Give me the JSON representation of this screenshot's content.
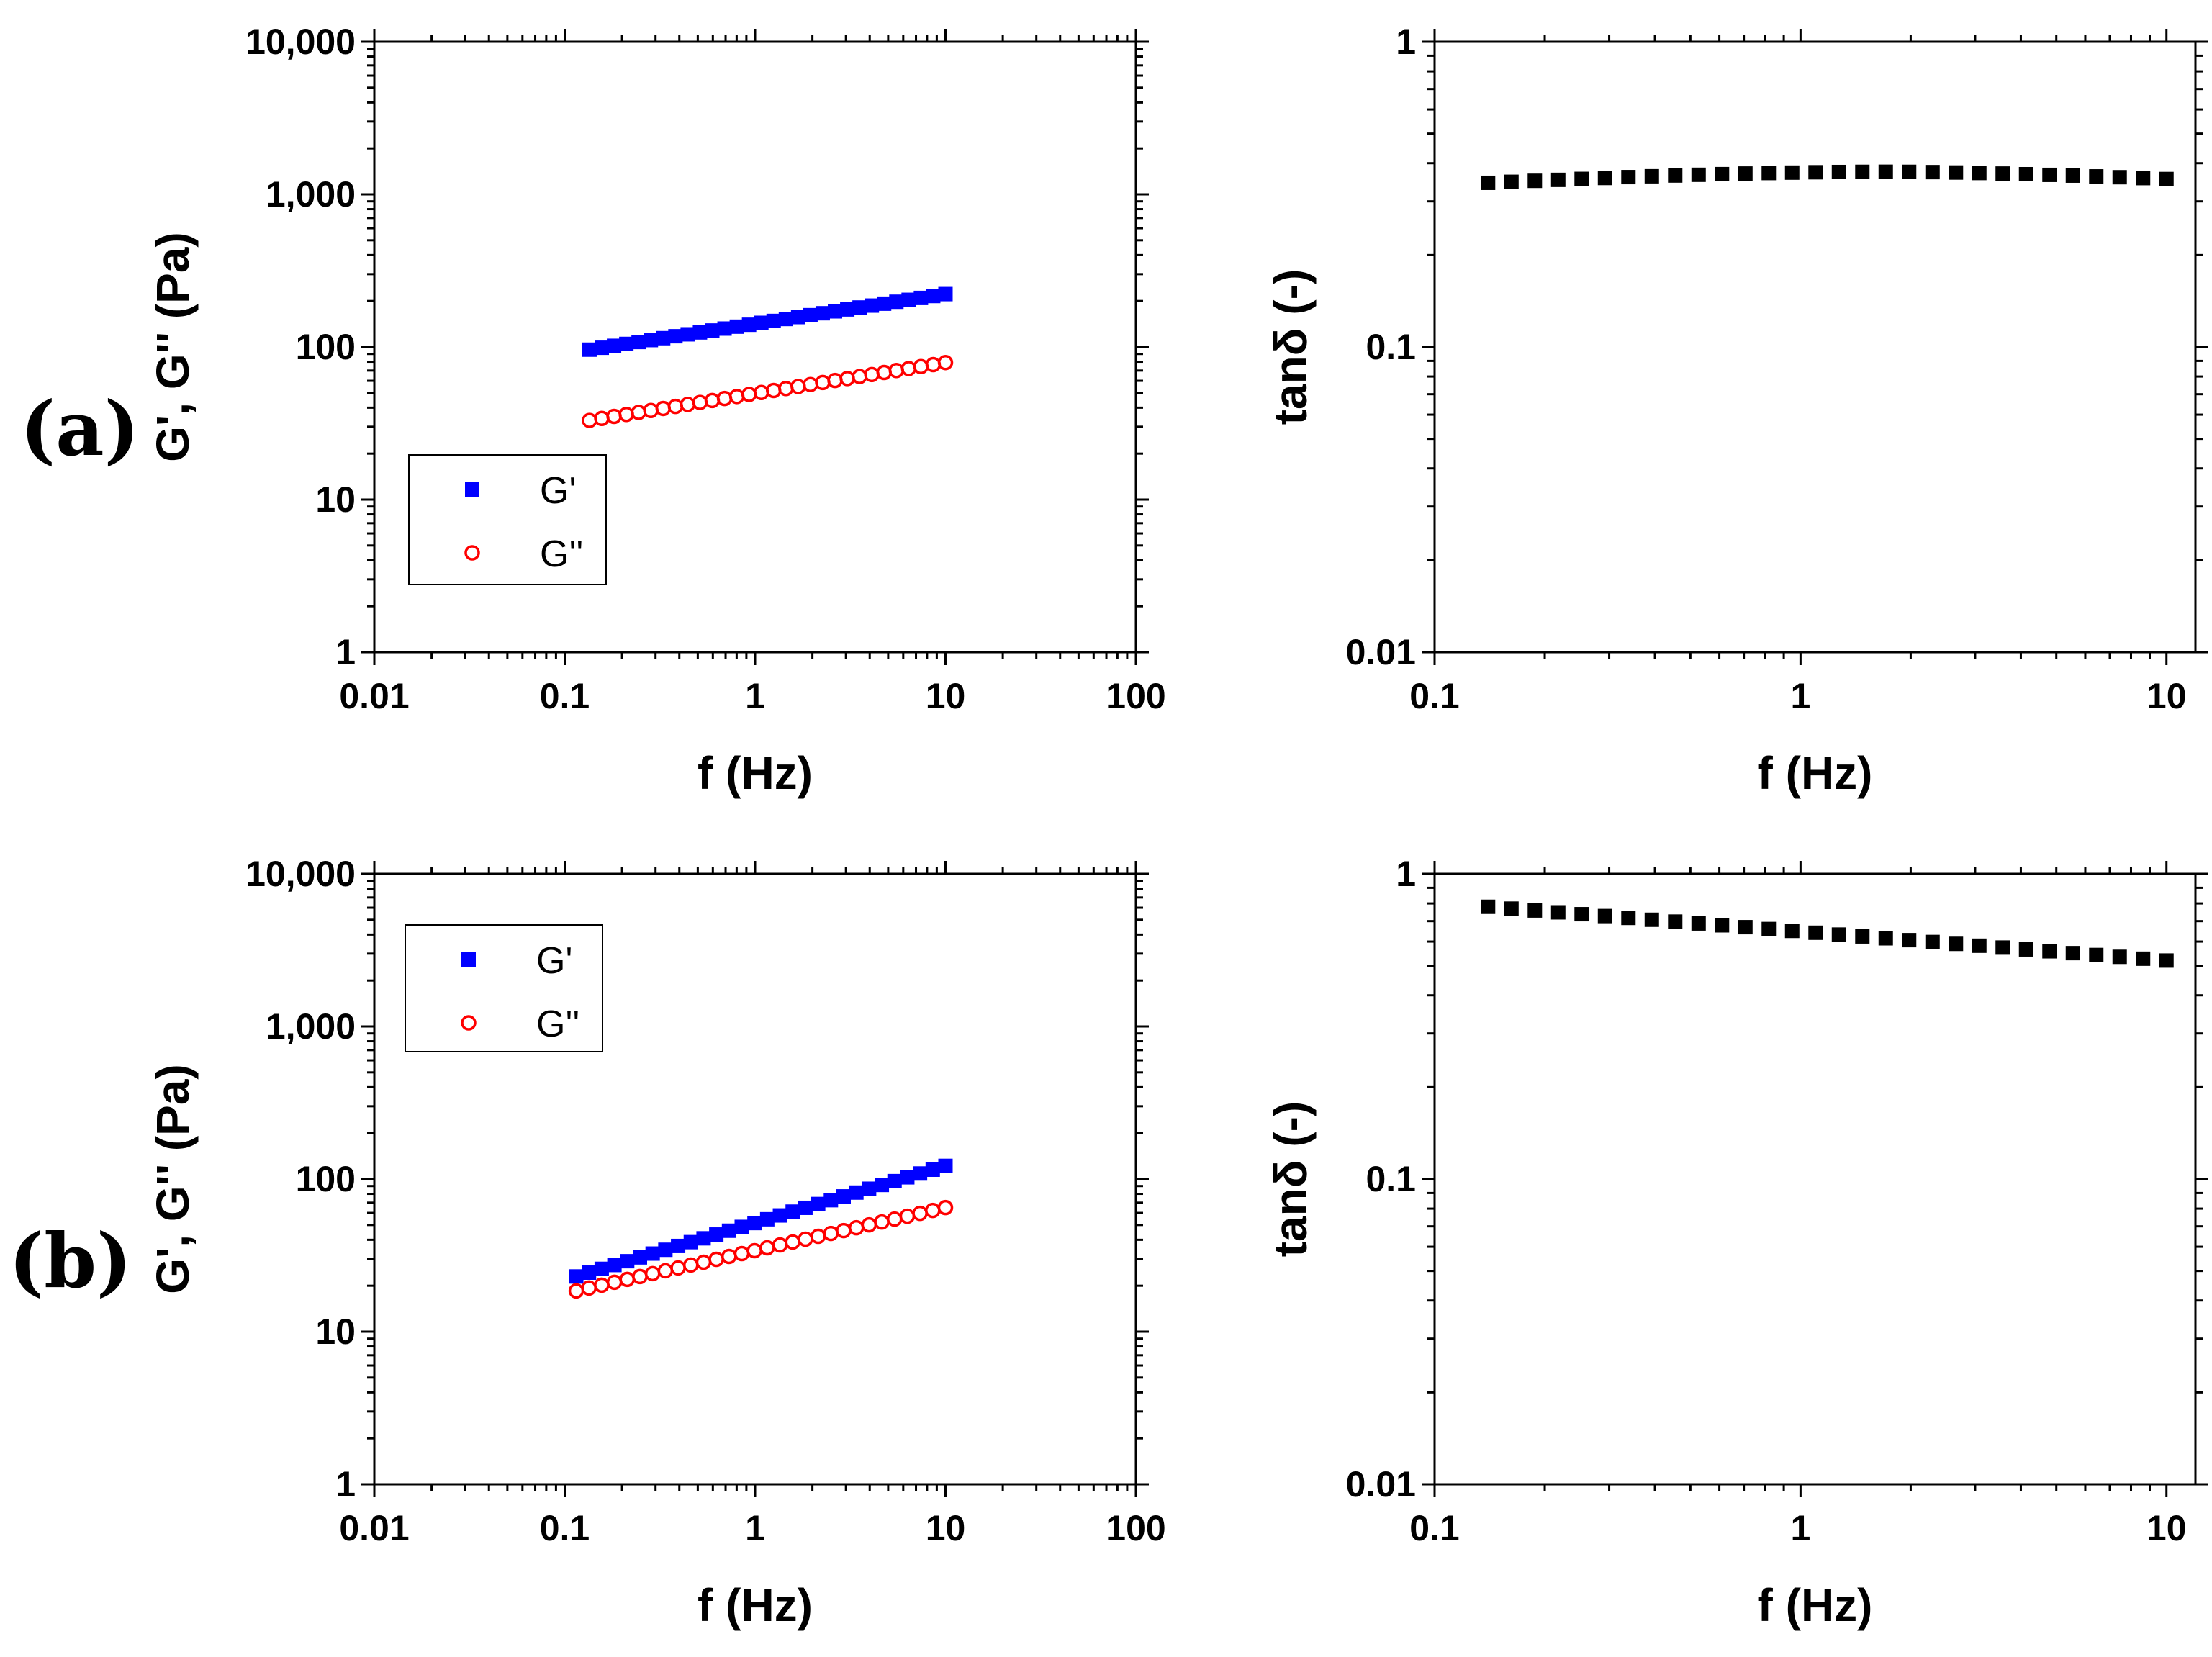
{
  "figure": {
    "panel_labels": [
      "(a)",
      "(b)"
    ]
  },
  "colors": {
    "g_prime": "#0000ff",
    "g_double_prime": "#ff0000",
    "tan_delta": "#000000",
    "axes": "#000000"
  },
  "chart_data": [
    {
      "id": "a-moduli",
      "panel": "(a)",
      "type": "scatter",
      "xscale": "log",
      "yscale": "log",
      "xlim": [
        0.01,
        100
      ],
      "ylim": [
        1,
        10000
      ],
      "xlabel": "f (Hz)",
      "ylabel": "G', G'' (Pa)",
      "xticks": [
        {
          "v": 0.01,
          "label": "0.01"
        },
        {
          "v": 0.1,
          "label": "0.1"
        },
        {
          "v": 1,
          "label": "1"
        },
        {
          "v": 10,
          "label": "10"
        },
        {
          "v": 100,
          "label": "100"
        }
      ],
      "yticks": [
        {
          "v": 1,
          "label": "1"
        },
        {
          "v": 10,
          "label": "10"
        },
        {
          "v": 100,
          "label": "100"
        },
        {
          "v": 1000,
          "label": "1,000"
        },
        {
          "v": 10000,
          "label": "10,000"
        }
      ],
      "legend": {
        "placement": "bottom-left",
        "entries": [
          "G'",
          "G''"
        ]
      },
      "series": [
        {
          "name": "G'",
          "marker": "filled-square",
          "color": "#0000ff",
          "f_start": 0.135,
          "f_end": 10,
          "count": 30,
          "y_start": 96,
          "y_end": 222
        },
        {
          "name": "G''",
          "marker": "open-circle",
          "color": "#ff0000",
          "f_start": 0.135,
          "f_end": 10,
          "count": 30,
          "y_start": 33,
          "y_end": 79
        }
      ]
    },
    {
      "id": "a-tandelta",
      "panel": "(a)",
      "type": "scatter",
      "xscale": "log",
      "yscale": "log",
      "xlim": [
        0.1,
        12
      ],
      "ylim": [
        0.01,
        1
      ],
      "xlabel": "f (Hz)",
      "ylabel": "tanδ (-)",
      "xticks": [
        {
          "v": 0.1,
          "label": "0.1"
        },
        {
          "v": 1,
          "label": "1"
        },
        {
          "v": 10,
          "label": "10"
        }
      ],
      "yticks": [
        {
          "v": 0.01,
          "label": "0.01"
        },
        {
          "v": 0.1,
          "label": "0.1"
        },
        {
          "v": 1,
          "label": "1"
        }
      ],
      "series": [
        {
          "name": "tanδ",
          "marker": "filled-square",
          "color": "#000000",
          "f_start": 0.14,
          "f_end": 10,
          "count": 30,
          "shape": "hump",
          "y_start": 0.345,
          "y_peak": 0.375,
          "y_end": 0.355
        }
      ]
    },
    {
      "id": "b-moduli",
      "panel": "(b)",
      "type": "scatter",
      "xscale": "log",
      "yscale": "log",
      "xlim": [
        0.01,
        100
      ],
      "ylim": [
        1,
        10000
      ],
      "xlabel": "f (Hz)",
      "ylabel": "G', G'' (Pa)",
      "xticks": [
        {
          "v": 0.01,
          "label": "0.01"
        },
        {
          "v": 0.1,
          "label": "0.1"
        },
        {
          "v": 1,
          "label": "1"
        },
        {
          "v": 10,
          "label": "10"
        },
        {
          "v": 100,
          "label": "100"
        }
      ],
      "yticks": [
        {
          "v": 1,
          "label": "1"
        },
        {
          "v": 10,
          "label": "10"
        },
        {
          "v": 100,
          "label": "100"
        },
        {
          "v": 1000,
          "label": "1,000"
        },
        {
          "v": 10000,
          "label": "10,000"
        }
      ],
      "legend": {
        "placement": "top-left",
        "entries": [
          "G'",
          "G''"
        ]
      },
      "series": [
        {
          "name": "G'",
          "marker": "filled-square",
          "color": "#0000ff",
          "f_start": 0.115,
          "f_end": 10,
          "count": 30,
          "y_start": 23,
          "y_end": 122
        },
        {
          "name": "G''",
          "marker": "open-circle",
          "color": "#ff0000",
          "f_start": 0.115,
          "f_end": 10,
          "count": 30,
          "y_start": 18.5,
          "y_end": 65
        }
      ]
    },
    {
      "id": "b-tandelta",
      "panel": "(b)",
      "type": "scatter",
      "xscale": "log",
      "yscale": "log",
      "xlim": [
        0.1,
        12
      ],
      "ylim": [
        0.01,
        1
      ],
      "xlabel": "f (Hz)",
      "ylabel": "tanδ (-)",
      "xticks": [
        {
          "v": 0.1,
          "label": "0.1"
        },
        {
          "v": 1,
          "label": "1"
        },
        {
          "v": 10,
          "label": "10"
        }
      ],
      "yticks": [
        {
          "v": 0.01,
          "label": "0.01"
        },
        {
          "v": 0.1,
          "label": "0.1"
        },
        {
          "v": 1,
          "label": "1"
        }
      ],
      "series": [
        {
          "name": "tanδ",
          "marker": "filled-square",
          "color": "#000000",
          "f_start": 0.14,
          "f_end": 10,
          "count": 30,
          "shape": "linear",
          "y_start": 0.78,
          "y_end": 0.52
        }
      ]
    }
  ]
}
